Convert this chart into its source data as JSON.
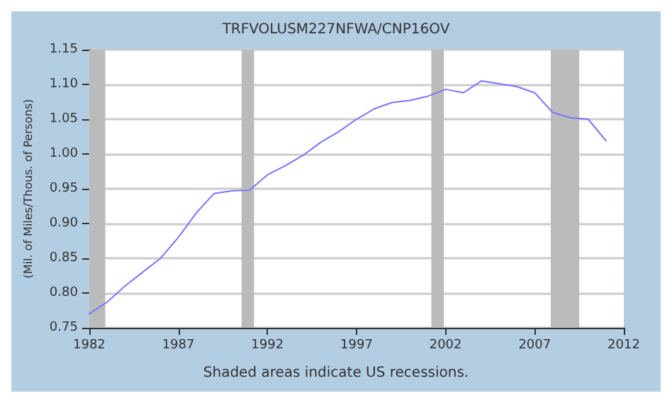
{
  "chart_data": {
    "type": "line",
    "title": "TRFVOLUSM227NFWA/CNP16OV",
    "ylabel": "(Mil. of Miles/Thous. of Persons)",
    "x": [
      1982,
      1983,
      1984,
      1985,
      1986,
      1987,
      1988,
      1989,
      1990,
      1991,
      1992,
      1993,
      1994,
      1995,
      1996,
      1997,
      1998,
      1999,
      2000,
      2001,
      2002,
      2003,
      2004,
      2005,
      2006,
      2007,
      2008,
      2009,
      2010,
      2011
    ],
    "series": [
      {
        "color": "#7777ff",
        "values": [
          0.77,
          0.787,
          0.81,
          0.83,
          0.85,
          0.88,
          0.915,
          0.943,
          0.947,
          0.948,
          0.97,
          0.983,
          0.998,
          1.017,
          1.032,
          1.05,
          1.065,
          1.074,
          1.077,
          1.083,
          1.093,
          1.088,
          1.105,
          1.101,
          1.097,
          1.088,
          1.06,
          1.052,
          1.05,
          1.019
        ]
      }
    ],
    "xlim": [
      1982,
      2012
    ],
    "xticks": [
      1982,
      1987,
      1992,
      1997,
      2002,
      2007,
      2012
    ],
    "ylim": [
      0.75,
      1.15
    ],
    "yticks": [
      {
        "value": 0.75,
        "label": "0.75"
      },
      {
        "value": 0.8,
        "label": "0.80"
      },
      {
        "value": 0.85,
        "label": "0.85"
      },
      {
        "value": 0.9,
        "label": "0.90"
      },
      {
        "value": 0.95,
        "label": "0.95"
      },
      {
        "value": 1.0,
        "label": "1.00"
      },
      {
        "value": 1.05,
        "label": "1.05"
      },
      {
        "value": 1.1,
        "label": "1.10"
      },
      {
        "value": 1.15,
        "label": "1.15"
      }
    ],
    "bands": [
      {
        "axis": "x",
        "from": 1982,
        "to": 1982.9,
        "color": "#bbbbbb"
      },
      {
        "axis": "x",
        "from": 1990.55,
        "to": 1991.25,
        "color": "#bbbbbb"
      },
      {
        "axis": "x",
        "from": 2001.2,
        "to": 2001.9,
        "color": "#bbbbbb"
      },
      {
        "axis": "x",
        "from": 2007.9,
        "to": 2009.5,
        "color": "#bbbbbb"
      }
    ],
    "grid": "y",
    "marker": "none",
    "line_style": "solid",
    "annotations": [
      "Shaded areas indicate US recessions."
    ]
  }
}
